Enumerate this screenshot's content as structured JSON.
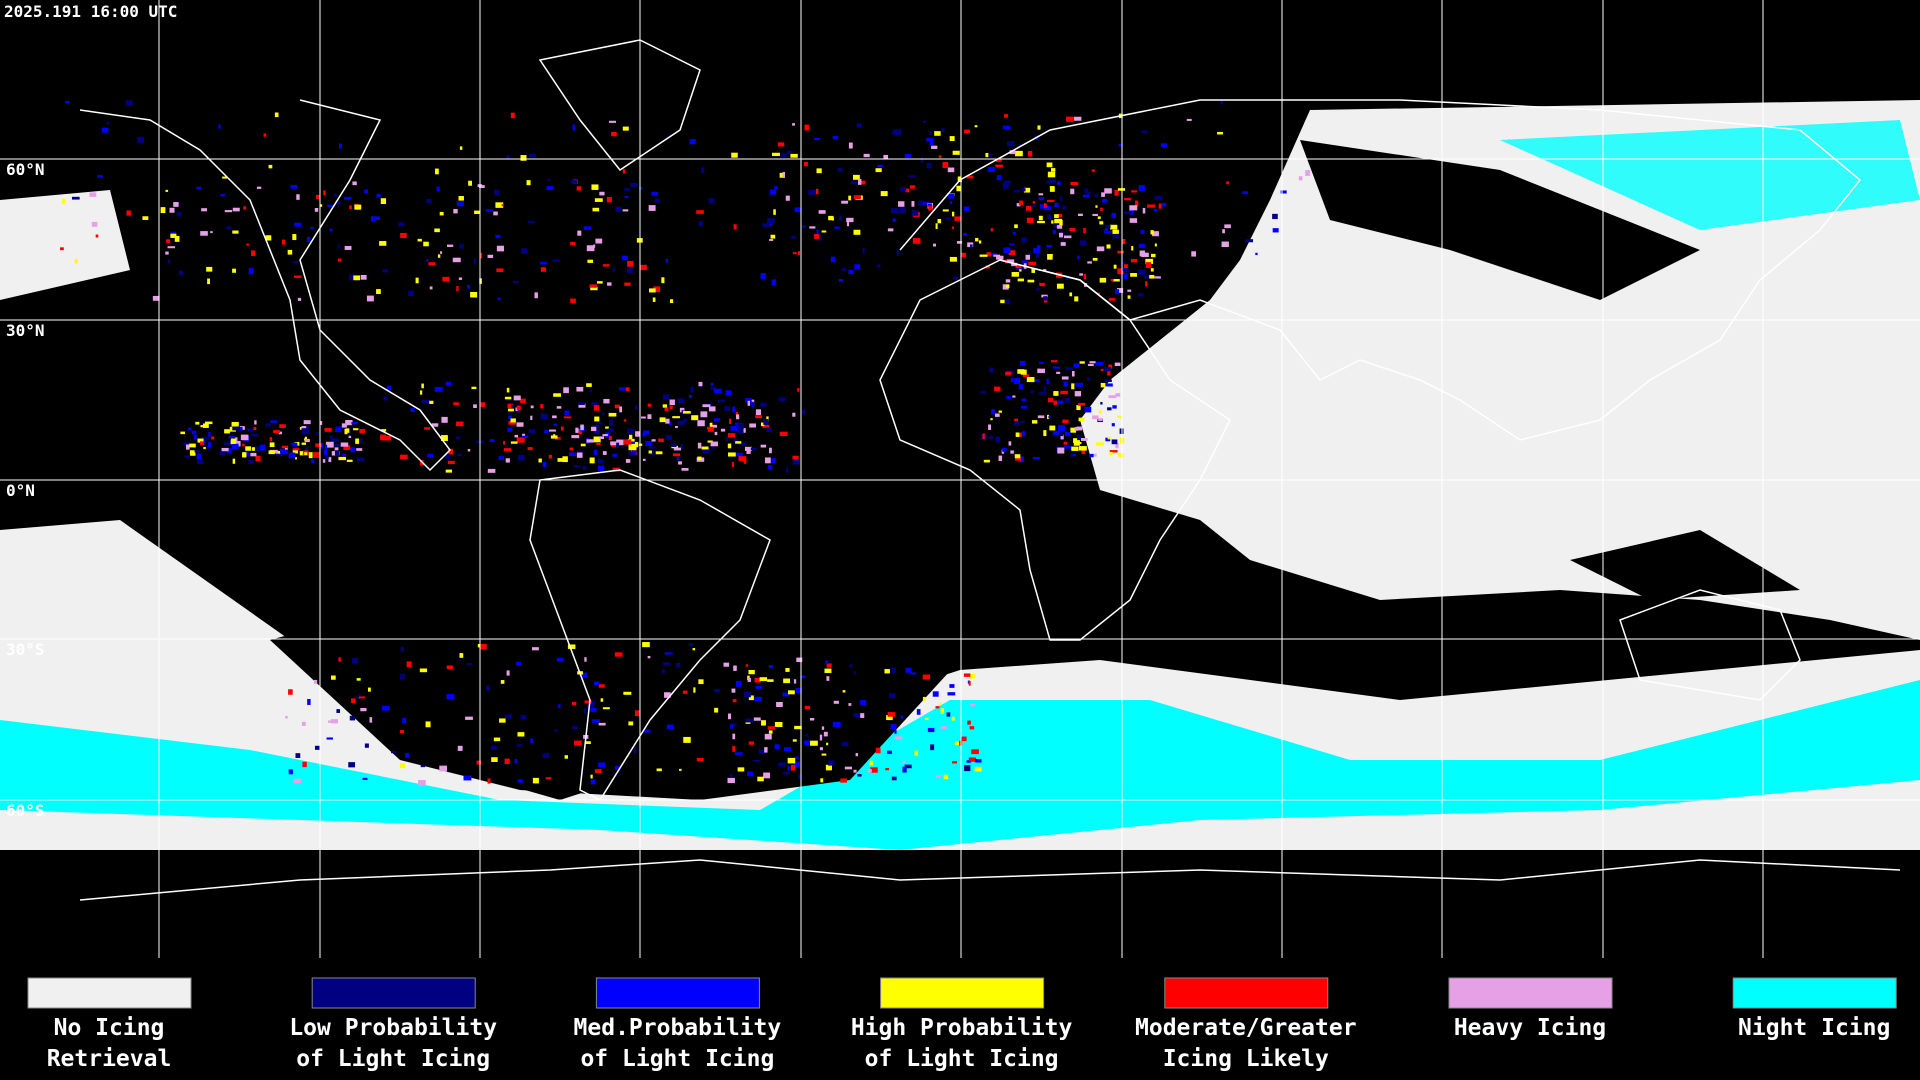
{
  "timestamp": "2025.191 16:00 UTC",
  "latitude_labels": [
    "60°N",
    "30°N",
    "0°N",
    "30°S",
    "60°S"
  ],
  "legend": [
    {
      "lines": [
        "No Icing",
        "Retrieval"
      ],
      "color": "#f0f0f0"
    },
    {
      "lines": [
        "Low Probability",
        "of Light Icing"
      ],
      "color": "#000080"
    },
    {
      "lines": [
        "Med.Probability",
        "of Light Icing"
      ],
      "color": "#0000ff"
    },
    {
      "lines": [
        "High Probability",
        "of Light Icing"
      ],
      "color": "#ffff00"
    },
    {
      "lines": [
        "Moderate/Greater",
        "Icing Likely"
      ],
      "color": "#ff0000"
    },
    {
      "lines": [
        "Heavy Icing"
      ],
      "color": "#e6a0e6"
    },
    {
      "lines": [
        "Night Icing"
      ],
      "color": "#00ffff"
    }
  ]
}
